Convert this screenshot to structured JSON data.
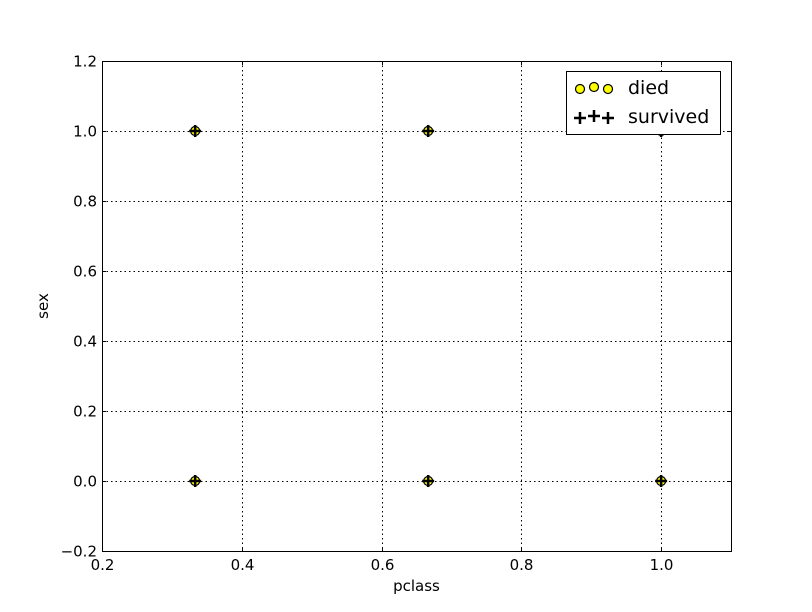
{
  "chart_data": {
    "type": "scatter",
    "title": "",
    "xlabel": "pclass",
    "ylabel": "sex",
    "xlim": [
      0.2,
      1.1
    ],
    "ylim": [
      -0.2,
      1.2
    ],
    "xticks": [
      0.2,
      0.4,
      0.6,
      0.8,
      1.0
    ],
    "yticks": [
      -0.2,
      0.0,
      0.2,
      0.4,
      0.6,
      0.8,
      1.0,
      1.2
    ],
    "xtick_labels": [
      "0.2",
      "0.4",
      "0.6",
      "0.8",
      "1.0"
    ],
    "ytick_labels": [
      "−0.2",
      "0.0",
      "0.2",
      "0.4",
      "0.6",
      "0.8",
      "1.0",
      "1.2"
    ],
    "grid": true,
    "legend_position": "top-right",
    "series": [
      {
        "name": "died",
        "marker": "circle",
        "color": "#ffff00",
        "edge_color": "#000000",
        "points": [
          {
            "x": 0.3333,
            "y": 1.0
          },
          {
            "x": 0.6667,
            "y": 1.0
          },
          {
            "x": 1.0,
            "y": 1.0
          },
          {
            "x": 0.3333,
            "y": 0.0
          },
          {
            "x": 0.6667,
            "y": 0.0
          },
          {
            "x": 1.0,
            "y": 0.0
          }
        ]
      },
      {
        "name": "survived",
        "marker": "plus",
        "color": "#000000",
        "points": [
          {
            "x": 0.3333,
            "y": 1.0
          },
          {
            "x": 0.6667,
            "y": 1.0
          },
          {
            "x": 1.0,
            "y": 1.0
          },
          {
            "x": 0.3333,
            "y": 0.0
          },
          {
            "x": 0.6667,
            "y": 0.0
          },
          {
            "x": 1.0,
            "y": 0.0
          }
        ]
      }
    ]
  }
}
